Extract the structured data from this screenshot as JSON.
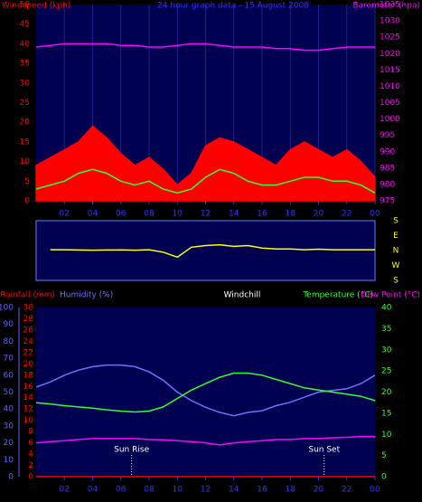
{
  "chart_data": [
    {
      "type": "line",
      "title": "24 hour graph data - 15 August 2008",
      "y_label": "Windspeed (kph)",
      "y2_label": "Barometer (hpa)",
      "title_color": "#3030ff",
      "axis_colors": {
        "x": "#3030ff",
        "y": "#ff0000",
        "y2": "#ff00ff"
      },
      "background": "#000050",
      "grid": true,
      "x": [
        0,
        1,
        2,
        3,
        4,
        5,
        6,
        7,
        8,
        9,
        10,
        11,
        12,
        13,
        14,
        15,
        16,
        17,
        18,
        19,
        20,
        21,
        22,
        23,
        24
      ],
      "xlim": [
        0,
        24
      ],
      "xticks": [
        {
          "value": 2,
          "label": "02"
        },
        {
          "value": 4,
          "label": "04"
        },
        {
          "value": 6,
          "label": "06"
        },
        {
          "value": 8,
          "label": "08"
        },
        10,
        12,
        14,
        16,
        18,
        20,
        22,
        {
          "value": 24,
          "label": "00"
        }
      ],
      "ylim": [
        0,
        50
      ],
      "yticks": [
        0,
        5,
        10,
        15,
        20,
        25,
        30,
        35,
        40,
        45,
        50
      ],
      "y2lim": [
        975,
        1035
      ],
      "y2ticks": [
        975,
        980,
        985,
        990,
        995,
        1000,
        1005,
        1010,
        1015,
        1020,
        1025,
        1030,
        1035
      ],
      "series": [
        {
          "color": "#ff0000",
          "fill": true,
          "axis": "y",
          "values": [
            9,
            11,
            13,
            15,
            19,
            16,
            12,
            9,
            11,
            8,
            4,
            7,
            14,
            16,
            15,
            13,
            11,
            9,
            13,
            15,
            13,
            11,
            13,
            10,
            6
          ]
        },
        {
          "color": "#30ff30",
          "axis": "y",
          "values": [
            3,
            4,
            5,
            7,
            8,
            7,
            5,
            4,
            5,
            3,
            2,
            3,
            6,
            8,
            7,
            5,
            4,
            4,
            5,
            6,
            6,
            5,
            5,
            4,
            2
          ]
        },
        {
          "color": "#ff00ff",
          "axis": "y2",
          "values": [
            1022,
            1022.5,
            1023,
            1023,
            1023,
            1023,
            1022.5,
            1022.5,
            1022,
            1022,
            1022.5,
            1023,
            1023,
            1022.5,
            1022,
            1022,
            1022,
            1021.5,
            1021.5,
            1021,
            1021,
            1021.5,
            1022,
            1022,
            1022
          ]
        }
      ]
    },
    {
      "type": "line",
      "axis_colors": {
        "y2": "#ffff00"
      },
      "background": "#000050",
      "x": [
        0,
        1,
        2,
        3,
        4,
        5,
        6,
        7,
        8,
        9,
        10,
        11,
        12,
        13,
        14,
        15,
        16,
        17,
        18,
        19,
        20,
        21,
        22,
        23,
        24
      ],
      "xlim": [
        0,
        24
      ],
      "ylim": [
        -180,
        180
      ],
      "y2lim": [
        -180,
        180
      ],
      "y2ticks": [
        {
          "value": 180,
          "label": "S"
        },
        {
          "value": 90,
          "label": "E"
        },
        {
          "value": 0,
          "label": "N"
        },
        {
          "value": -90,
          "label": "W"
        },
        {
          "value": -180,
          "label": "S"
        }
      ],
      "series": [
        {
          "color": "#ffff00",
          "axis": "y",
          "values": [
            null,
            5,
            5,
            3,
            2,
            3,
            4,
            2,
            5,
            -10,
            -40,
            20,
            30,
            35,
            25,
            30,
            15,
            10,
            10,
            5,
            8,
            5,
            5,
            5,
            5
          ]
        }
      ]
    },
    {
      "type": "line",
      "windchill_label": "Windchill",
      "windchill_color": "#ffffff",
      "axis_colors": {
        "x": "#3030ff",
        "y": "#ff0000",
        "y2": "#30ff30",
        "y3": "#6060ff"
      },
      "background": "#000050",
      "x": [
        0,
        1,
        2,
        3,
        4,
        5,
        6,
        7,
        8,
        9,
        10,
        11,
        12,
        13,
        14,
        15,
        16,
        17,
        18,
        19,
        20,
        21,
        22,
        23,
        24
      ],
      "xlim": [
        0,
        24
      ],
      "xticks": [
        {
          "value": 2,
          "label": "02"
        },
        {
          "value": 4,
          "label": "04"
        },
        {
          "value": 6,
          "label": "06"
        },
        {
          "value": 8,
          "label": "08"
        },
        10,
        12,
        14,
        16,
        18,
        20,
        22,
        {
          "value": 24,
          "label": "00"
        }
      ],
      "ylim": [
        0,
        30
      ],
      "yticks": [
        0,
        2,
        4,
        6,
        8,
        10,
        12,
        14,
        16,
        18,
        20,
        22,
        24,
        26,
        28,
        30
      ],
      "y2lim": [
        0,
        40
      ],
      "y2ticks": [
        0,
        5,
        10,
        15,
        20,
        25,
        30,
        35,
        40
      ],
      "y3lim": [
        0,
        100
      ],
      "y3ticks": [
        0,
        10,
        20,
        30,
        40,
        50,
        60,
        70,
        80,
        90,
        100
      ],
      "series": [
        {
          "name": "Rainfall (mm)",
          "color": "#ff0000",
          "axis": "y",
          "values": [
            0,
            0,
            0,
            0,
            0,
            0,
            0,
            0,
            0,
            0,
            0,
            0,
            0,
            0,
            0,
            0,
            0,
            0,
            0,
            0,
            0,
            0,
            0,
            0,
            0
          ]
        },
        {
          "name": "Humidity (%)",
          "color": "#7070ff",
          "axis": "y3",
          "values": [
            53,
            56,
            60,
            63,
            65,
            66,
            66,
            65,
            62,
            57,
            50,
            45,
            41,
            38,
            36,
            38,
            39,
            42,
            44,
            47,
            50,
            51,
            52,
            55,
            60
          ]
        },
        {
          "name": "Temperature (°C)",
          "color": "#30ff30",
          "axis": "y2",
          "values": [
            17.5,
            17.2,
            16.8,
            16.5,
            16.2,
            15.8,
            15.5,
            15.3,
            15.5,
            16.5,
            18.5,
            20.5,
            22,
            23.5,
            24.5,
            24.5,
            24,
            23,
            22,
            21,
            20.5,
            20,
            19.5,
            19,
            18
          ]
        },
        {
          "name": "Dew Point (°C)",
          "color": "#ff00ff",
          "axis": "y2",
          "values": [
            8,
            8.3,
            8.5,
            8.8,
            9,
            9,
            9,
            9,
            8.8,
            8.7,
            8.5,
            8.3,
            8,
            7.5,
            8,
            8.3,
            8.5,
            8.8,
            8.8,
            9,
            9,
            9.2,
            9.3,
            9.5,
            9.5
          ]
        }
      ],
      "annotations": [
        {
          "text": "Sun Rise",
          "x": 6.76
        },
        {
          "text": "Sun Set",
          "x": 20.4
        }
      ]
    }
  ]
}
